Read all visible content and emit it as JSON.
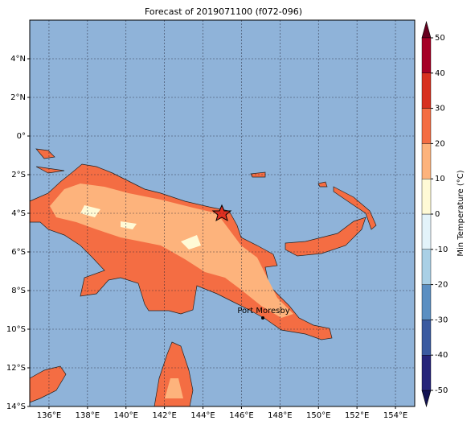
{
  "chart_data": {
    "type": "map",
    "title": "Forecast of 2019071100 (f072-096)",
    "xlim": [
      135,
      155
    ],
    "ylim": [
      -14,
      6
    ],
    "xticks": [
      {
        "value": 136,
        "label": "136°E"
      },
      {
        "value": 138,
        "label": "138°E"
      },
      {
        "value": 140,
        "label": "140°E"
      },
      {
        "value": 142,
        "label": "142°E"
      },
      {
        "value": 144,
        "label": "144°E"
      },
      {
        "value": 146,
        "label": "146°E"
      },
      {
        "value": 148,
        "label": "148°E"
      },
      {
        "value": 150,
        "label": "150°E"
      },
      {
        "value": 152,
        "label": "152°E"
      },
      {
        "value": 154,
        "label": "154°E"
      }
    ],
    "yticks": [
      {
        "value": -14,
        "label": "14°S"
      },
      {
        "value": -12,
        "label": "12°S"
      },
      {
        "value": -10,
        "label": "10°S"
      },
      {
        "value": -8,
        "label": "8°S"
      },
      {
        "value": -6,
        "label": "6°S"
      },
      {
        "value": -4,
        "label": "4°S"
      },
      {
        "value": -2,
        "label": "2°S"
      },
      {
        "value": 0,
        "label": "0°"
      },
      {
        "value": 2,
        "label": "2°N"
      },
      {
        "value": 4,
        "label": "4°N"
      }
    ],
    "grid": true,
    "annotation": "Port Moresby",
    "colorbar": {
      "label": "Min Temperature (°C)",
      "lim": [
        -50,
        50
      ],
      "ticks": [
        -50,
        -40,
        -30,
        -20,
        -10,
        0,
        10,
        20,
        30,
        40,
        50
      ],
      "colors": [
        "#25247a",
        "#3a5aa0",
        "#5b8fc2",
        "#a9d0e6",
        "#e3f3fa",
        "#fffad6",
        "#fdb37c",
        "#f46d43",
        "#d7301f",
        "#a50026"
      ],
      "under_color": "#131353",
      "over_color": "#67001f"
    }
  }
}
